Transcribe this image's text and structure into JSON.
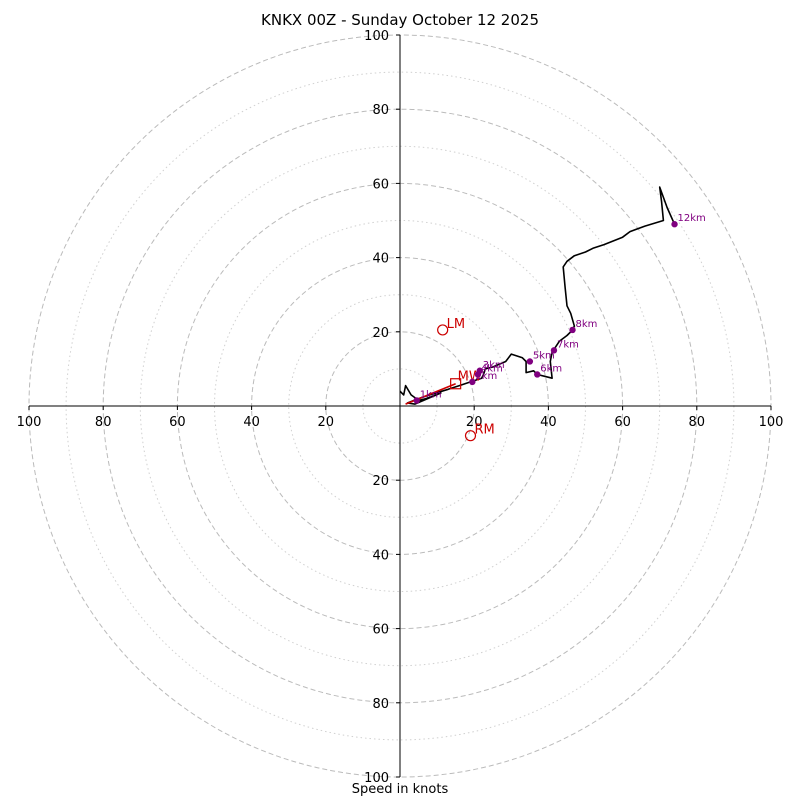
{
  "chart_data": {
    "type": "hodograph",
    "title": "KNKX 00Z - Sunday October 12 2025",
    "xlabel": "Speed in knots",
    "range_knots": 100,
    "rings_major": [
      20,
      40,
      60,
      80,
      100
    ],
    "rings_minor": [
      10,
      30,
      50,
      70,
      90
    ],
    "x_ticks": [
      {
        "v": -100,
        "label": "100"
      },
      {
        "v": -80,
        "label": "80"
      },
      {
        "v": -60,
        "label": "60"
      },
      {
        "v": -40,
        "label": "40"
      },
      {
        "v": -20,
        "label": "20"
      },
      {
        "v": 20,
        "label": "20"
      },
      {
        "v": 40,
        "label": "40"
      },
      {
        "v": 60,
        "label": "60"
      },
      {
        "v": 80,
        "label": "80"
      },
      {
        "v": 100,
        "label": "100"
      }
    ],
    "y_ticks": [
      {
        "v": 100,
        "label": "100"
      },
      {
        "v": 80,
        "label": "80"
      },
      {
        "v": 60,
        "label": "60"
      },
      {
        "v": 40,
        "label": "40"
      },
      {
        "v": 20,
        "label": "20"
      },
      {
        "v": -20,
        "label": "20"
      },
      {
        "v": -40,
        "label": "40"
      },
      {
        "v": -60,
        "label": "60"
      },
      {
        "v": -80,
        "label": "80"
      },
      {
        "v": -100,
        "label": "100"
      }
    ],
    "trace": [
      [
        0,
        4
      ],
      [
        1,
        3
      ],
      [
        1.5,
        5.5
      ],
      [
        3,
        3
      ],
      [
        5,
        1.5
      ],
      [
        7,
        2
      ],
      [
        11,
        3.5
      ],
      [
        4,
        0.5
      ],
      [
        2,
        0.8
      ],
      [
        5,
        2
      ],
      [
        8,
        3
      ],
      [
        13,
        4.5
      ],
      [
        16,
        5.5
      ],
      [
        19,
        6.5
      ],
      [
        22,
        7.5
      ],
      [
        22.5,
        8.5
      ],
      [
        23,
        10
      ],
      [
        25,
        10.5
      ],
      [
        28.5,
        12
      ],
      [
        30,
        14
      ],
      [
        33,
        13
      ],
      [
        34,
        12
      ],
      [
        34,
        9
      ],
      [
        36,
        9.5
      ],
      [
        37,
        8.5
      ],
      [
        39,
        8
      ],
      [
        41,
        7.5
      ],
      [
        40.5,
        12
      ],
      [
        41,
        14.5
      ],
      [
        43,
        17.5
      ],
      [
        45,
        19
      ],
      [
        46,
        20
      ],
      [
        47,
        21.5
      ],
      [
        46,
        25
      ],
      [
        45,
        27
      ],
      [
        44.5,
        32
      ],
      [
        44,
        37.5
      ],
      [
        45,
        39
      ],
      [
        47,
        40.5
      ],
      [
        50,
        41.5
      ],
      [
        52,
        42.5
      ],
      [
        55,
        43.5
      ],
      [
        60,
        45.5
      ],
      [
        62,
        47
      ],
      [
        66,
        48.5
      ],
      [
        71,
        50
      ],
      [
        70.5,
        55
      ],
      [
        70,
        59
      ],
      [
        72,
        53.5
      ],
      [
        74,
        49
      ]
    ],
    "height_markers": [
      {
        "label": "1km",
        "u": 4.5,
        "v": 1.5
      },
      {
        "label": "2km",
        "u": 19.5,
        "v": 6.5
      },
      {
        "label": "3km",
        "u": 21.5,
        "v": 9.5
      },
      {
        "label": "4km",
        "u": 21,
        "v": 8.5
      },
      {
        "label": "5km",
        "u": 35,
        "v": 12
      },
      {
        "label": "6km",
        "u": 37,
        "v": 8.5
      },
      {
        "label": "7km",
        "u": 41.5,
        "v": 15
      },
      {
        "label": "8km",
        "u": 46.5,
        "v": 20.5
      },
      {
        "label": "12km",
        "u": 74,
        "v": 49
      }
    ],
    "storm_motion": {
      "mean_wind": {
        "label": "MW",
        "u": 15,
        "v": 6
      },
      "left_mover": {
        "label": "LM",
        "u": 11.5,
        "v": 20.5
      },
      "right_mover": {
        "label": "RM",
        "u": 19,
        "v": -8
      }
    },
    "shear_vector": {
      "from": [
        1.5,
        0.5
      ],
      "to": [
        15,
        6
      ]
    },
    "colors": {
      "trace": "#000000",
      "markers": "#800080",
      "storm_motion": "#cc0000",
      "grid": "#bbbbbb"
    }
  }
}
